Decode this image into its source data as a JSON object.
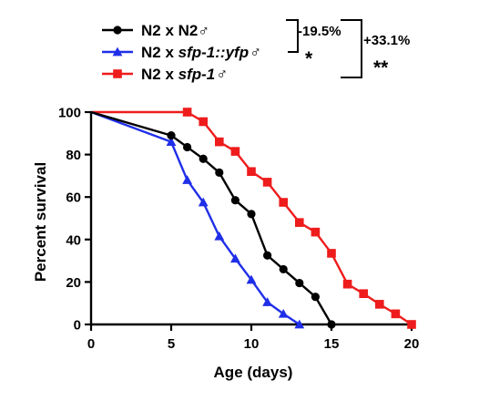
{
  "chart_data": {
    "type": "line",
    "xlabel": "Age (days)",
    "ylabel": "Percent survival",
    "xlim": [
      0,
      20
    ],
    "ylim": [
      0,
      100
    ],
    "xticks": [
      0,
      5,
      10,
      15,
      20
    ],
    "yticks": [
      0,
      20,
      40,
      60,
      80,
      100
    ],
    "grid": false,
    "legend_position": "top",
    "series": [
      {
        "name_prefix": "N2 x ",
        "name_rest": "N2♂",
        "name_italic": false,
        "color": "#000000",
        "marker": "circle",
        "x": [
          0,
          5,
          6,
          7,
          8,
          9,
          10,
          11,
          12,
          13,
          14,
          15
        ],
        "y": [
          100,
          89,
          83.5,
          78,
          71.5,
          58.5,
          52,
          32.5,
          26,
          19.5,
          13,
          0
        ]
      },
      {
        "name_prefix": "N2 x ",
        "name_rest": "sfp-1::yfp♂",
        "name_italic": true,
        "color": "#1f2fe8",
        "marker": "triangle",
        "x": [
          0,
          5,
          6,
          7,
          8,
          9,
          10,
          11,
          12,
          13
        ],
        "y": [
          100,
          86,
          68,
          57.5,
          41.5,
          31,
          21,
          10.5,
          5,
          0
        ]
      },
      {
        "name_prefix": "N2 x ",
        "name_rest": "sfp-1♂",
        "name_italic": true,
        "color": "#ee1c1c",
        "marker": "square",
        "x": [
          0,
          6,
          7,
          8,
          9,
          10,
          11,
          12,
          13,
          14,
          15,
          16,
          17,
          18,
          19,
          20
        ],
        "y": [
          100,
          100,
          95.5,
          86,
          81.5,
          72,
          67,
          57.5,
          48,
          43.5,
          33.5,
          19,
          14.5,
          9.5,
          5,
          0
        ]
      }
    ],
    "annotations": [
      {
        "text": "-19.5%",
        "stars": "*"
      },
      {
        "text": "+33.1%",
        "stars": "**"
      }
    ]
  }
}
